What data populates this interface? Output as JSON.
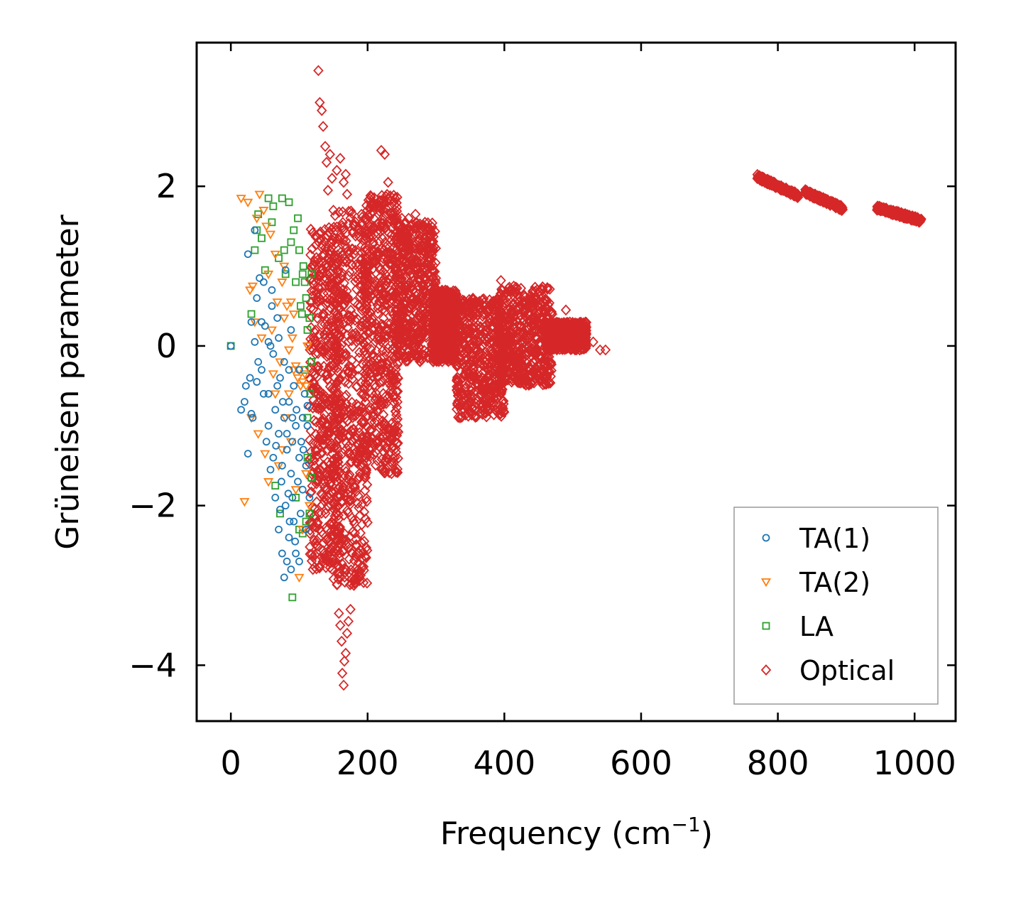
{
  "chart_data": {
    "type": "scatter",
    "xlabel": "Frequency (cm",
    "xlabel_sup": "−1",
    "xlabel_close": ")",
    "ylabel": "Grüneisen parameter",
    "xlim": [
      -50,
      1060
    ],
    "ylim": [
      -4.7,
      3.8
    ],
    "xticks": [
      0,
      200,
      400,
      600,
      800,
      1000
    ],
    "xtick_labels": [
      "0",
      "200",
      "400",
      "600",
      "800",
      "1000"
    ],
    "yticks": [
      -4,
      -2,
      0,
      2
    ],
    "ytick_labels": [
      "−4",
      "−2",
      "0",
      "2"
    ],
    "legend_position": "bottom-right",
    "series": [
      {
        "name": "TA(1)",
        "marker": "circle",
        "color": "#1f77b4",
        "points": [
          [
            0,
            0
          ],
          [
            15,
            -0.8
          ],
          [
            20,
            -0.7
          ],
          [
            22,
            -0.5
          ],
          [
            25,
            1.15
          ],
          [
            25,
            -1.35
          ],
          [
            28,
            -0.4
          ],
          [
            30,
            0.3
          ],
          [
            32,
            -0.9
          ],
          [
            35,
            1.45
          ],
          [
            35,
            0.05
          ],
          [
            38,
            0.6
          ],
          [
            40,
            -0.2
          ],
          [
            42,
            0.85
          ],
          [
            45,
            -0.3
          ],
          [
            48,
            0.8
          ],
          [
            50,
            0.25
          ],
          [
            52,
            -1.2
          ],
          [
            55,
            0.05
          ],
          [
            55,
            -0.6
          ],
          [
            58,
            -1.55
          ],
          [
            60,
            0.5
          ],
          [
            62,
            -0.1
          ],
          [
            65,
            -0.8
          ],
          [
            65,
            -1.9
          ],
          [
            68,
            0.35
          ],
          [
            70,
            -1.1
          ],
          [
            70,
            -2.3
          ],
          [
            72,
            -0.4
          ],
          [
            75,
            -1.5
          ],
          [
            75,
            -2.6
          ],
          [
            78,
            -0.9
          ],
          [
            78,
            -2.9
          ],
          [
            80,
            -2.0
          ],
          [
            82,
            -1.3
          ],
          [
            82,
            -2.7
          ],
          [
            85,
            -0.7
          ],
          [
            85,
            -2.4
          ],
          [
            88,
            -1.6
          ],
          [
            88,
            -2.8
          ],
          [
            90,
            -1.9
          ],
          [
            90,
            -1.2
          ],
          [
            92,
            -2.2
          ],
          [
            95,
            -1.0
          ],
          [
            95,
            -2.6
          ],
          [
            98,
            -1.7
          ],
          [
            100,
            -1.4
          ],
          [
            100,
            -2.7
          ],
          [
            102,
            -2.1
          ],
          [
            105,
            -0.9
          ],
          [
            105,
            -1.8
          ],
          [
            108,
            -0.6
          ],
          [
            110,
            -2.3
          ],
          [
            110,
            -1.5
          ],
          [
            112,
            -1.0
          ],
          [
            115,
            -1.9
          ],
          [
            80,
            0.95
          ],
          [
            60,
            0.7
          ],
          [
            45,
            0.3
          ],
          [
            70,
            0.1
          ],
          [
            85,
            -0.3
          ],
          [
            92,
            -0.5
          ],
          [
            55,
            -1.0
          ],
          [
            62,
            -1.4
          ],
          [
            74,
            -1.7
          ],
          [
            86,
            -2.2
          ],
          [
            96,
            -0.8
          ],
          [
            103,
            -1.2
          ],
          [
            68,
            -0.5
          ],
          [
            78,
            -0.2
          ],
          [
            88,
            0.2
          ],
          [
            58,
            0.0
          ],
          [
            48,
            -0.6
          ],
          [
            38,
            -0.45
          ],
          [
            30,
            -0.85
          ],
          [
            72,
            -2.05
          ],
          [
            84,
            -1.85
          ],
          [
            94,
            -2.45
          ],
          [
            82,
            -1.1
          ],
          [
            76,
            -0.7
          ],
          [
            66,
            -1.25
          ],
          [
            90,
            -0.9
          ],
          [
            100,
            -0.3
          ],
          [
            106,
            -1.3
          ],
          [
            112,
            -0.75
          ]
        ]
      },
      {
        "name": "TA(2)",
        "marker": "triangle-down",
        "color": "#ff7f0e",
        "points": [
          [
            15,
            1.85
          ],
          [
            20,
            -1.95
          ],
          [
            25,
            1.8
          ],
          [
            28,
            0.7
          ],
          [
            30,
            -0.9
          ],
          [
            32,
            0.75
          ],
          [
            35,
            0.3
          ],
          [
            38,
            1.6
          ],
          [
            40,
            -1.1
          ],
          [
            42,
            1.9
          ],
          [
            45,
            0.1
          ],
          [
            48,
            1.7
          ],
          [
            50,
            -1.35
          ],
          [
            52,
            1.5
          ],
          [
            55,
            0.9
          ],
          [
            55,
            -1.7
          ],
          [
            58,
            1.4
          ],
          [
            60,
            0.2
          ],
          [
            62,
            -0.35
          ],
          [
            65,
            1.15
          ],
          [
            65,
            -0.6
          ],
          [
            68,
            0.55
          ],
          [
            70,
            -1.5
          ],
          [
            72,
            -0.2
          ],
          [
            75,
            0.8
          ],
          [
            75,
            -1.3
          ],
          [
            78,
            0.35
          ],
          [
            80,
            -0.9
          ],
          [
            82,
            0.5
          ],
          [
            85,
            -0.05
          ],
          [
            85,
            -0.6
          ],
          [
            88,
            -1.2
          ],
          [
            90,
            0.1
          ],
          [
            92,
            -0.3
          ],
          [
            95,
            -1.8
          ],
          [
            98,
            -0.4
          ],
          [
            100,
            -2.9
          ],
          [
            102,
            -0.5
          ],
          [
            105,
            -2.3
          ],
          [
            108,
            -0.35
          ],
          [
            110,
            -1.6
          ],
          [
            112,
            0.0
          ],
          [
            115,
            -2.0
          ],
          [
            105,
            -0.45
          ],
          [
            100,
            -0.3
          ],
          [
            95,
            -0.25
          ],
          [
            110,
            -0.5
          ],
          [
            88,
            0.55
          ],
          [
            78,
            1.0
          ],
          [
            92,
            0.4
          ]
        ]
      },
      {
        "name": "LA",
        "marker": "square",
        "color": "#2ca02c",
        "points": [
          [
            0,
            0
          ],
          [
            30,
            0.4
          ],
          [
            35,
            1.2
          ],
          [
            38,
            1.45
          ],
          [
            40,
            1.65
          ],
          [
            45,
            1.35
          ],
          [
            50,
            0.95
          ],
          [
            55,
            1.85
          ],
          [
            60,
            1.55
          ],
          [
            62,
            1.75
          ],
          [
            65,
            -1.75
          ],
          [
            70,
            1.1
          ],
          [
            72,
            -2.1
          ],
          [
            75,
            1.85
          ],
          [
            78,
            1.2
          ],
          [
            80,
            0.9
          ],
          [
            85,
            1.8
          ],
          [
            88,
            1.3
          ],
          [
            90,
            -3.15
          ],
          [
            92,
            1.45
          ],
          [
            95,
            0.8
          ],
          [
            98,
            1.6
          ],
          [
            100,
            1.2
          ],
          [
            102,
            0.5
          ],
          [
            105,
            0.9
          ],
          [
            108,
            -0.3
          ],
          [
            110,
            0.6
          ],
          [
            112,
            -1.4
          ],
          [
            115,
            -2.1
          ],
          [
            118,
            -1.65
          ],
          [
            112,
            0.2
          ],
          [
            108,
            0.8
          ],
          [
            115,
            0.35
          ],
          [
            118,
            -0.2
          ],
          [
            105,
            -2.35
          ],
          [
            95,
            -1.9
          ],
          [
            100,
            -2.3
          ],
          [
            110,
            -2.2
          ],
          [
            104,
            0.4
          ],
          [
            112,
            -0.9
          ],
          [
            116,
            -0.6
          ],
          [
            106,
            1.0
          ],
          [
            118,
            0.9
          ]
        ]
      },
      {
        "name": "Optical",
        "marker": "diamond",
        "color": "#d62728",
        "points": [
          [
            128,
            3.45
          ],
          [
            130,
            3.05
          ],
          [
            133,
            2.95
          ],
          [
            135,
            2.75
          ],
          [
            138,
            2.5
          ],
          [
            140,
            2.3
          ],
          [
            142,
            1.95
          ],
          [
            145,
            2.4
          ],
          [
            148,
            2.1
          ],
          [
            150,
            1.7
          ],
          [
            155,
            2.2
          ],
          [
            160,
            2.35
          ],
          [
            165,
            2.05
          ],
          [
            168,
            2.15
          ],
          [
            170,
            1.9
          ],
          [
            175,
            1.6
          ],
          [
            180,
            1.5
          ],
          [
            158,
            -3.35
          ],
          [
            160,
            -3.5
          ],
          [
            162,
            -3.7
          ],
          [
            163,
            -4.1
          ],
          [
            165,
            -4.25
          ],
          [
            166,
            -3.95
          ],
          [
            168,
            -3.85
          ],
          [
            170,
            -3.6
          ],
          [
            172,
            -3.45
          ],
          [
            175,
            -3.3
          ],
          [
            180,
            -3.0
          ],
          [
            220,
            2.45
          ],
          [
            225,
            2.4
          ],
          [
            230,
            2.05
          ],
          [
            240,
            1.85
          ],
          [
            250,
            1.6
          ],
          [
            255,
            1.55
          ],
          [
            260,
            1.6
          ],
          [
            270,
            1.65
          ],
          [
            290,
            1.35
          ],
          [
            300,
            0.85
          ],
          [
            310,
            0.3
          ],
          [
            320,
            0.0
          ],
          [
            335,
            -0.9
          ],
          [
            395,
            0.82
          ],
          [
            410,
            0.7
          ],
          [
            440,
            0.5
          ],
          [
            455,
            0.35
          ],
          [
            470,
            0.4
          ],
          [
            490,
            0.45
          ],
          [
            500,
            0.2
          ],
          [
            505,
            0.05
          ],
          [
            510,
            -0.05
          ],
          [
            520,
            0.0
          ],
          [
            530,
            0.05
          ],
          [
            540,
            -0.05
          ],
          [
            548,
            -0.05
          ],
          [
            240,
            -1.55
          ],
          [
            235,
            -1.6
          ],
          [
            120,
            -2.8
          ],
          [
            125,
            -2.5
          ]
        ]
      }
    ],
    "optical_main_cloud": {
      "regions": [
        {
          "x": [
            115,
            160
          ],
          "y": [
            -2.8,
            1.5
          ]
        },
        {
          "x": [
            150,
            200
          ],
          "y": [
            -3.0,
            1.7
          ]
        },
        {
          "x": [
            195,
            245
          ],
          "y": [
            -1.6,
            1.9
          ]
        },
        {
          "x": [
            240,
            300
          ],
          "y": [
            -0.2,
            1.55
          ]
        },
        {
          "x": [
            295,
            330
          ],
          "y": [
            -0.2,
            0.7
          ]
        },
        {
          "x": [
            330,
            400
          ],
          "y": [
            -0.9,
            0.6
          ]
        },
        {
          "x": [
            390,
            470
          ],
          "y": [
            -0.5,
            0.75
          ]
        },
        {
          "x": [
            460,
            520
          ],
          "y": [
            -0.05,
            0.3
          ]
        }
      ]
    },
    "optical_high_bands": [
      {
        "x": [
          770,
          830
        ],
        "y": [
          2.12,
          1.88
        ]
      },
      {
        "x": [
          840,
          895
        ],
        "y": [
          1.93,
          1.72
        ]
      },
      {
        "x": [
          945,
          1010
        ],
        "y": [
          1.73,
          1.57
        ]
      }
    ]
  }
}
